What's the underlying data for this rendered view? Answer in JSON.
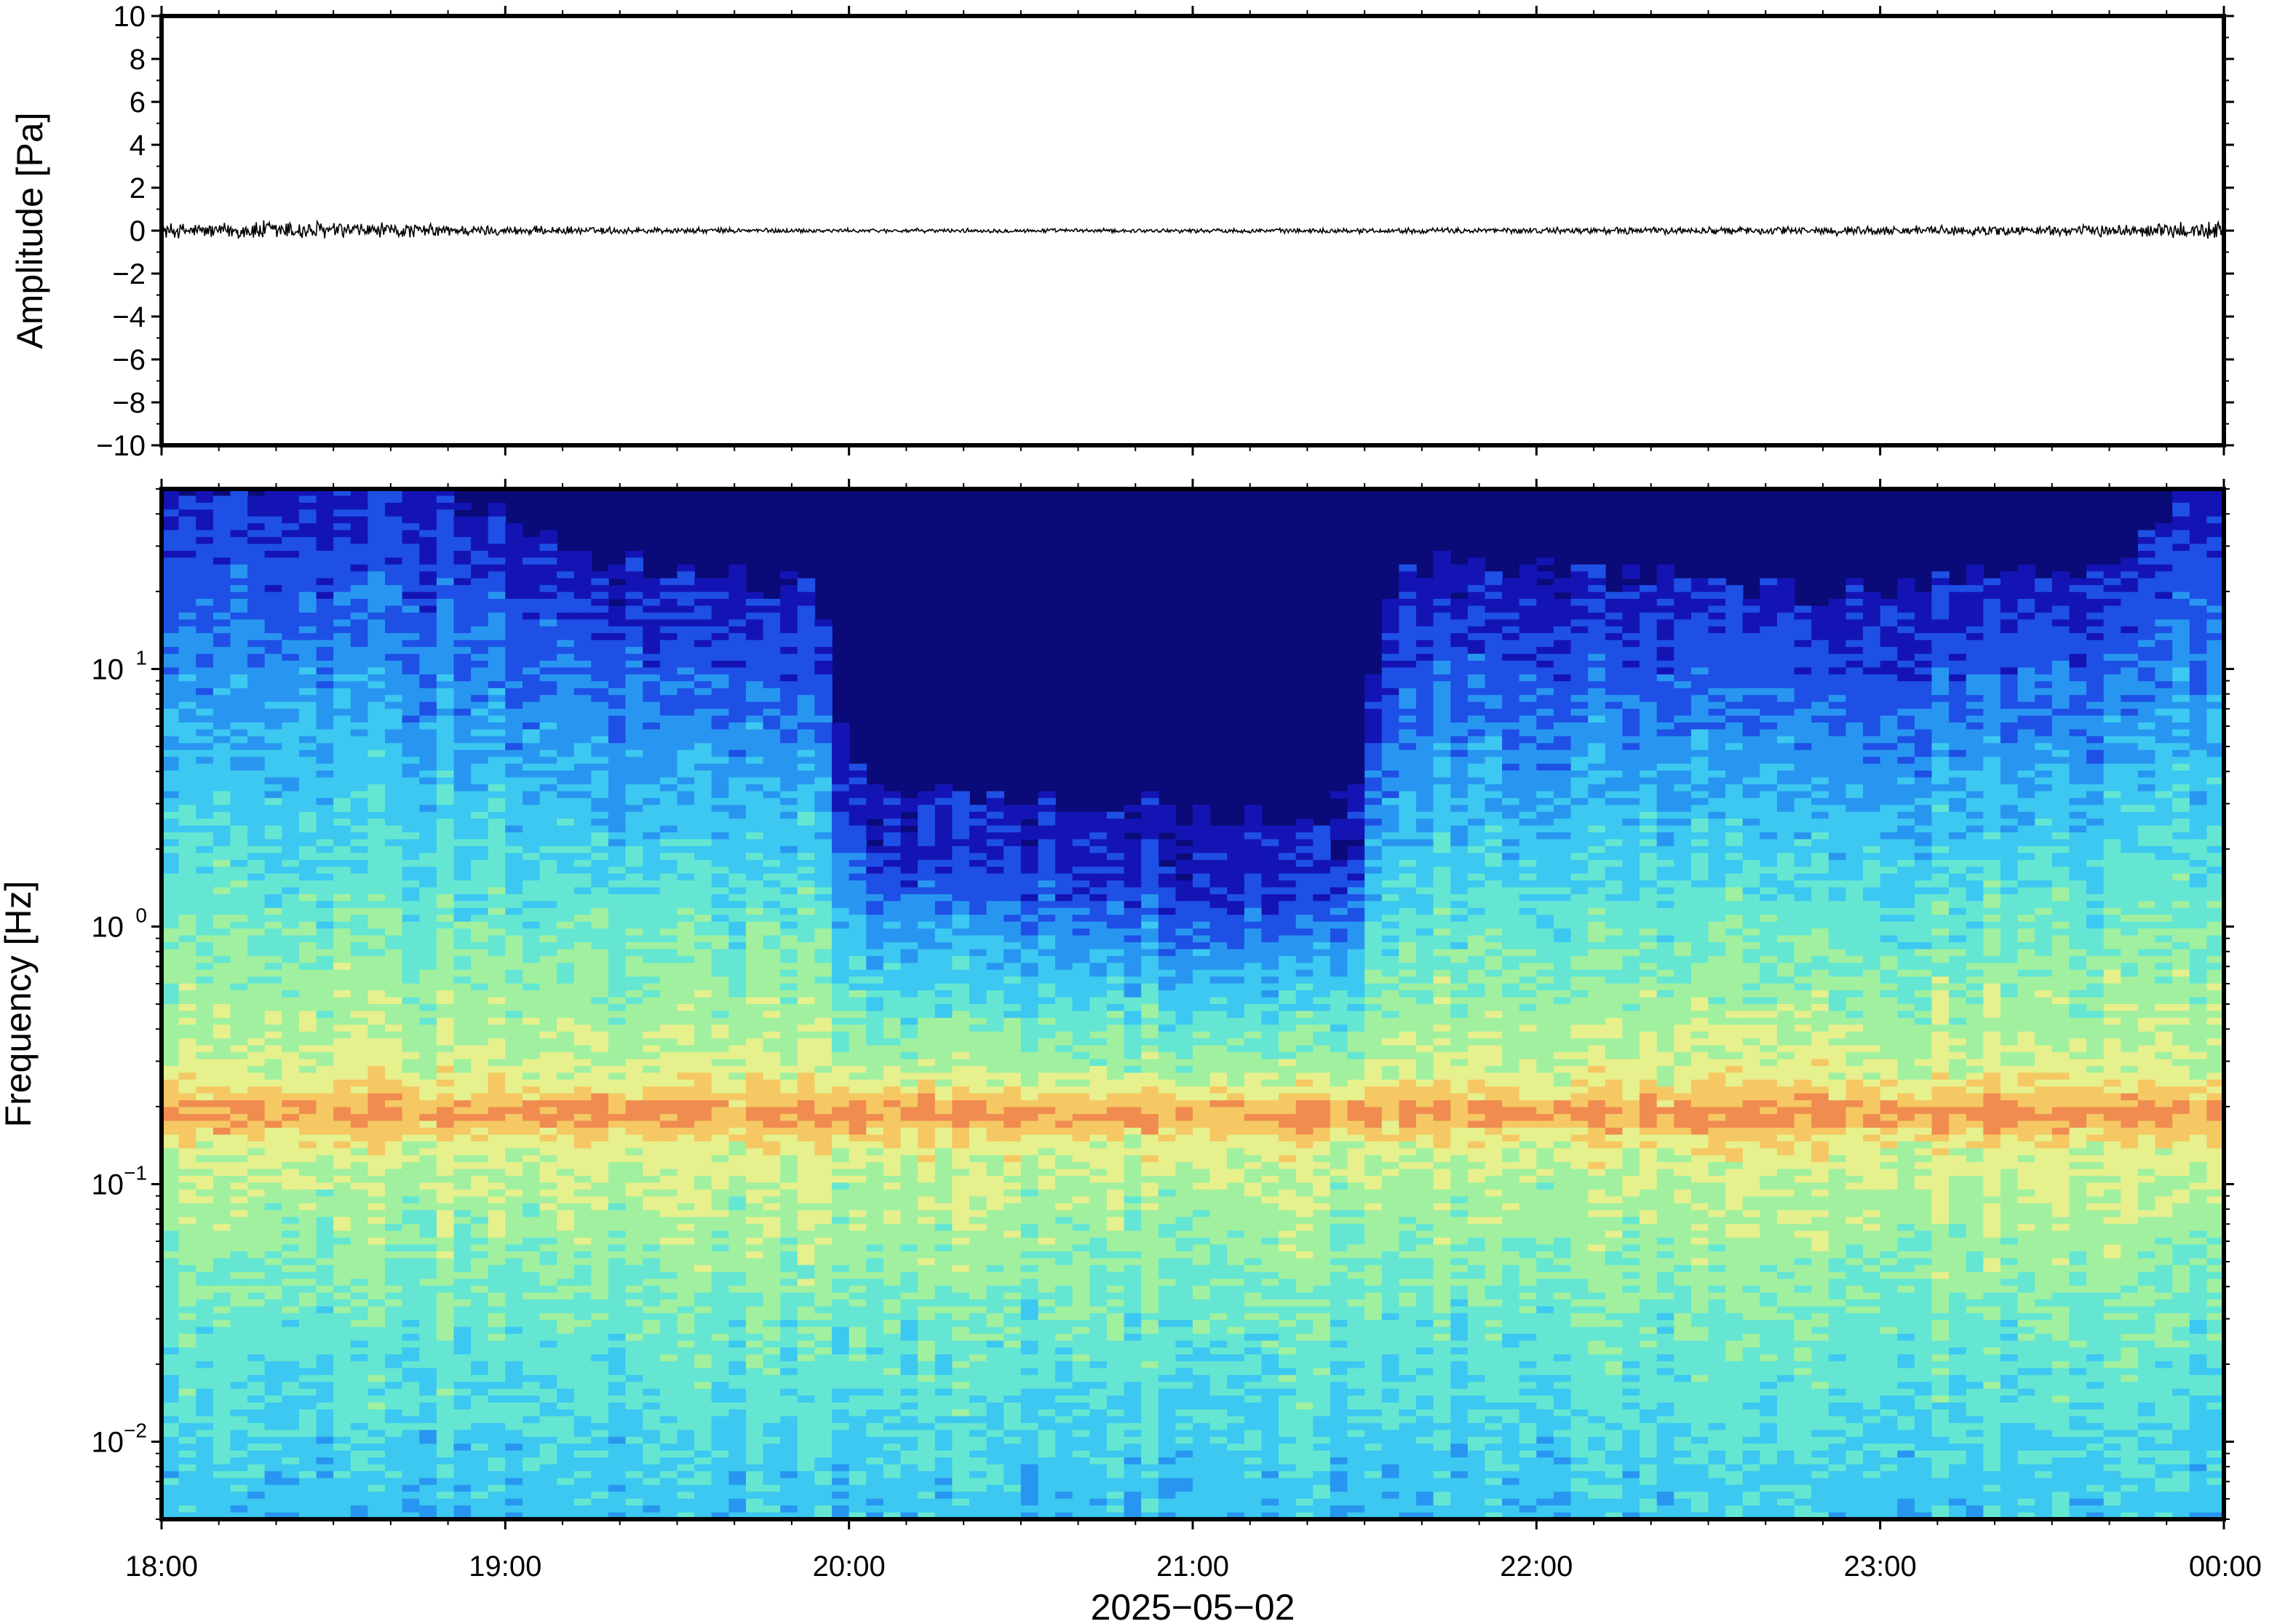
{
  "chart_data": [
    {
      "type": "line",
      "panel": "waveform",
      "title": "",
      "xlabel": "",
      "ylabel": "Amplitude [Pa]",
      "xlim": [
        "18:00",
        "00:00"
      ],
      "ylim": [
        -10,
        10
      ],
      "y_ticks": [
        {
          "value": 10,
          "label": "10"
        },
        {
          "value": 8,
          "label": "8"
        },
        {
          "value": 6,
          "label": "6"
        },
        {
          "value": 4,
          "label": "4"
        },
        {
          "value": 2,
          "label": "2"
        },
        {
          "value": 0,
          "label": "0"
        },
        {
          "value": -2,
          "label": "−2"
        },
        {
          "value": -4,
          "label": "−4"
        },
        {
          "value": -6,
          "label": "−6"
        },
        {
          "value": -8,
          "label": "−8"
        },
        {
          "value": -10,
          "label": "−10"
        }
      ],
      "grid": false,
      "line_color": "#000000",
      "envelope": {
        "time_hours": [
          0.0,
          0.17,
          0.33,
          0.5,
          0.67,
          1.0,
          1.5,
          2.0,
          2.5,
          3.0,
          3.5,
          4.0,
          4.5,
          5.0,
          5.5,
          5.75,
          5.92,
          6.0
        ],
        "amplitude_pa": [
          0.3,
          0.3,
          0.45,
          0.35,
          0.3,
          0.18,
          0.12,
          0.08,
          0.08,
          0.08,
          0.1,
          0.12,
          0.15,
          0.18,
          0.2,
          0.25,
          0.4,
          0.35
        ]
      }
    },
    {
      "type": "heatmap",
      "panel": "spectrogram",
      "title": "",
      "xlabel": "2025−05−02",
      "ylabel": "Frequency [Hz]",
      "xlim": [
        "18:00",
        "00:00"
      ],
      "x_ticks": [
        "18:00",
        "19:00",
        "20:00",
        "21:00",
        "22:00",
        "23:00",
        "00:00"
      ],
      "y_scale": "log",
      "ylim": [
        0.005,
        50
      ],
      "y_ticks": [
        {
          "value": 0.01,
          "base": "10",
          "exp": "−2"
        },
        {
          "value": 0.1,
          "base": "10",
          "exp": "−1"
        },
        {
          "value": 1,
          "base": "10",
          "exp": "0"
        },
        {
          "value": 10,
          "base": "10",
          "exp": "1"
        }
      ],
      "colormap": [
        "#0a0a78",
        "#1414b4",
        "#1e50e6",
        "#2896f0",
        "#3cc8f0",
        "#64e6d2",
        "#a0f0a0",
        "#e6f08c",
        "#f5c864",
        "#f08c50"
      ],
      "microbarom_peak_hz": 0.19,
      "noise_edge_hz": {
        "time_hours": [
          0.0,
          0.3,
          0.5,
          0.7,
          0.9,
          1.1,
          1.3,
          1.5,
          1.7,
          1.85,
          2.0,
          2.3,
          2.6,
          2.9,
          3.1,
          3.3,
          3.5,
          3.6,
          3.7,
          4.0,
          4.3,
          4.6,
          4.9,
          5.2,
          5.5,
          5.7,
          5.85,
          6.0
        ],
        "frequency_hz": [
          20,
          25,
          22,
          25,
          20,
          15,
          12,
          11,
          10,
          10,
          1.8,
          1.5,
          1.4,
          1.3,
          1.2,
          1.1,
          1.5,
          11,
          12,
          11,
          10,
          9,
          9,
          10,
          11,
          11,
          20,
          25
        ]
      }
    }
  ]
}
